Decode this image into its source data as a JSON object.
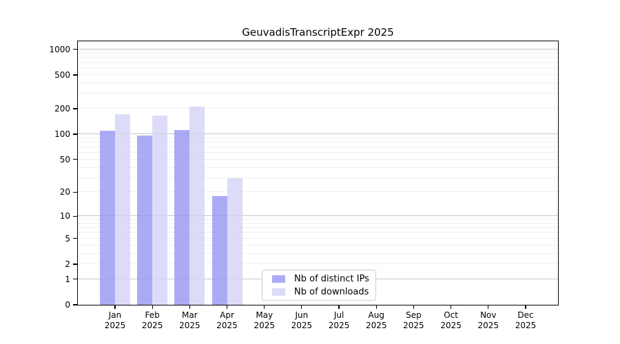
{
  "chart_data": {
    "type": "bar",
    "title": "GeuvadisTranscriptExpr 2025",
    "categories": [
      "Jan",
      "Feb",
      "Mar",
      "Apr",
      "May",
      "Jun",
      "Jul",
      "Aug",
      "Sep",
      "Oct",
      "Nov",
      "Dec"
    ],
    "year_label": "2025",
    "series": [
      {
        "name": "Nb of distinct IPs",
        "values": [
          110,
          97,
          112,
          18,
          0,
          0,
          0,
          0,
          0,
          0,
          0,
          0
        ],
        "bar_color": "rgba(150,150,243,0.8)",
        "legend_color": "#ababf5"
      },
      {
        "name": "Nb of downloads",
        "values": [
          174,
          167,
          211,
          30,
          0,
          0,
          0,
          0,
          0,
          0,
          0,
          0
        ],
        "bar_color": "rgba(211,211,246,0.8)",
        "legend_color": "#dcdcf8"
      }
    ],
    "y_ticks": [
      0,
      1,
      2,
      5,
      10,
      20,
      50,
      100,
      200,
      500,
      1000
    ],
    "scale": "log10(1+value)",
    "ylim": [
      0,
      1250
    ],
    "grid": {
      "major": [
        1,
        10,
        100,
        1000
      ],
      "minor": [
        2,
        3,
        4,
        5,
        6,
        7,
        8,
        9,
        20,
        30,
        40,
        50,
        60,
        70,
        80,
        90,
        200,
        300,
        400,
        500,
        600,
        700,
        800,
        900
      ],
      "major_color": "#c6c6c6",
      "minor_color": "#efefef"
    },
    "legend_position": "bottom-center-left",
    "axis_color": "#000000",
    "background_color": "#ffffff"
  }
}
